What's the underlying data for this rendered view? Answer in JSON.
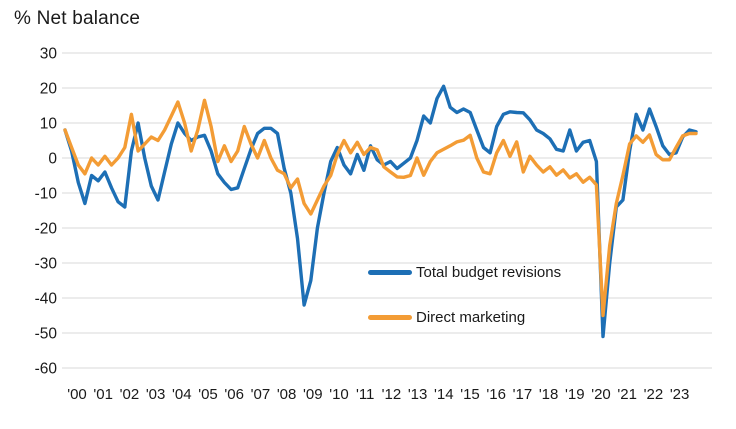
{
  "title": "% Net balance",
  "legend": {
    "items": [
      {
        "label": "Total budget revisions",
        "color": "#1D6FB5"
      },
      {
        "label": "Direct marketing",
        "color": "#F39C35"
      }
    ]
  },
  "colors": {
    "grid": "#D9D9D9",
    "text": "#1A1A1A",
    "background": "#FFFFFF",
    "blue": "#1D6FB5",
    "orange": "#F39C35"
  },
  "chart_data": {
    "type": "line",
    "title": "% Net balance",
    "x_unit": "quarterly",
    "x_start": "2000 Q1",
    "x_end": "2023 Q4",
    "points_per_year": 4,
    "categories": [
      "'00",
      "'01",
      "'02",
      "'03",
      "'04",
      "'05",
      "'06",
      "'07",
      "'08",
      "'09",
      "'10",
      "'11",
      "'12",
      "'13",
      "'14",
      "'15",
      "'16",
      "'17",
      "'18",
      "'19",
      "'20",
      "'21",
      "'22",
      "'23"
    ],
    "ylim": [
      -60,
      30
    ],
    "yticks": [
      30,
      20,
      10,
      0,
      -10,
      -20,
      -30,
      -40,
      -50,
      -60
    ],
    "grid": "horizontal",
    "legend_position": "inside-lower-middle",
    "series": [
      {
        "name": "Total budget revisions",
        "color": "#1D6FB5",
        "values": [
          8,
          2,
          -7,
          -13,
          -5,
          -6.5,
          -4,
          -8.5,
          -12.5,
          -14,
          2,
          10,
          0,
          -8,
          -12,
          -4,
          4,
          10,
          7,
          5,
          6,
          6.5,
          2,
          -4.5,
          -7,
          -9,
          -8.5,
          -3,
          2.5,
          7,
          8.5,
          8.5,
          7,
          -3,
          -10,
          -23,
          -42,
          -35,
          -20,
          -10,
          -1,
          3,
          -2,
          -4.5,
          1,
          -3.5,
          3.5,
          -0.5,
          -2,
          -1,
          -3,
          -1.5,
          0,
          5,
          12,
          10,
          17,
          20.5,
          14.5,
          13,
          14,
          13,
          8,
          3,
          1.5,
          9,
          12.5,
          13.2,
          13,
          12.9,
          10.9,
          8,
          7,
          5.5,
          2.5,
          2,
          8,
          2,
          4.5,
          5,
          -1,
          -51,
          -30,
          -14,
          -12,
          2,
          12.5,
          8,
          14,
          9,
          3.5,
          1,
          1.5,
          6,
          8,
          7.5
        ]
      },
      {
        "name": "Direct marketing",
        "color": "#F39C35",
        "values": [
          8,
          3,
          -2,
          -4.5,
          0,
          -2,
          0.5,
          -2,
          0,
          3,
          12.5,
          2,
          4,
          6,
          5,
          8,
          12,
          16,
          10,
          2,
          8,
          16.5,
          9,
          -1,
          3.5,
          -1,
          2,
          9,
          4,
          0,
          5,
          0,
          -3.5,
          -4.5,
          -8.5,
          -6,
          -13,
          -16,
          -12,
          -8,
          -5,
          1,
          5,
          1.5,
          4.5,
          1,
          3,
          2.3,
          -2.5,
          -4,
          -5.4,
          -5.5,
          -5,
          0,
          -4.9,
          -1,
          1.5,
          2.5,
          3.5,
          4.6,
          5.1,
          6.5,
          0,
          -4,
          -4.5,
          1.5,
          5,
          0.5,
          4.6,
          -4,
          0.5,
          -2,
          -4,
          -2.5,
          -4.9,
          -3.4,
          -5.7,
          -4.5,
          -6.9,
          -5.5,
          -7.7,
          -45,
          -25,
          -13,
          -5,
          4,
          6.3,
          4.5,
          6.6,
          1,
          -0.5,
          -0.5,
          3,
          6.3,
          7,
          7
        ]
      }
    ]
  }
}
